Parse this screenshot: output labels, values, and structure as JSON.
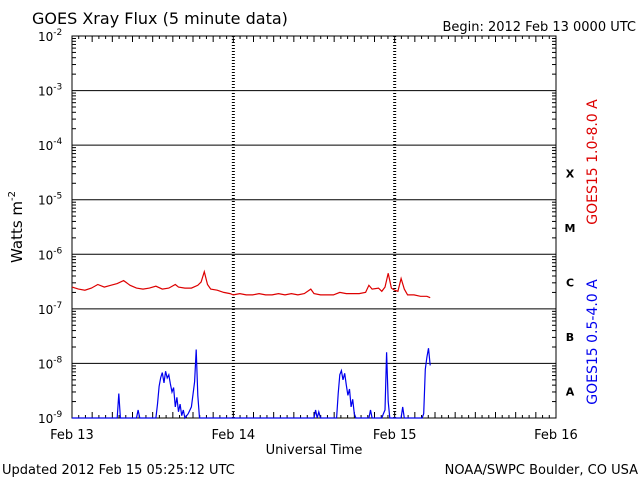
{
  "chart_data": {
    "type": "line",
    "title": "GOES Xray Flux (5 minute data)",
    "begin_label": "Begin:  2012 Feb 13 0000 UTC",
    "xlabel": "Universal Time",
    "ylabel_main": "Watts m",
    "ylabel_exp": "-2",
    "y_scale": "log",
    "ylim": [
      1e-09,
      0.01
    ],
    "x_domain_days": [
      0,
      3
    ],
    "x_ticks": [
      {
        "day": 0,
        "label": "Feb 13"
      },
      {
        "day": 1,
        "label": "Feb 14"
      },
      {
        "day": 2,
        "label": "Feb 15"
      },
      {
        "day": 3,
        "label": "Feb 16"
      }
    ],
    "y_ticks": [
      {
        "exp": -2,
        "label": "10"
      },
      {
        "exp": -3,
        "label": "10"
      },
      {
        "exp": -4,
        "label": "10"
      },
      {
        "exp": -5,
        "label": "10"
      },
      {
        "exp": -6,
        "label": "10"
      },
      {
        "exp": -7,
        "label": "10"
      },
      {
        "exp": -8,
        "label": "10"
      },
      {
        "exp": -9,
        "label": "10"
      }
    ],
    "flare_classes": [
      {
        "label": "X",
        "exp": -4
      },
      {
        "label": "M",
        "exp": -5
      },
      {
        "label": "C",
        "exp": -6
      },
      {
        "label": "B",
        "exp": -7
      },
      {
        "label": "A",
        "exp": -8
      }
    ],
    "grid": "horizontal lines at each decade; dashed vertical lines at day boundaries",
    "series": [
      {
        "name": "GOES15 1.0-8.0 A",
        "color": "#dd0000",
        "points": [
          [
            0.0,
            2.5e-07
          ],
          [
            0.04,
            2.3e-07
          ],
          [
            0.08,
            2.2e-07
          ],
          [
            0.12,
            2.4e-07
          ],
          [
            0.16,
            2.8e-07
          ],
          [
            0.2,
            2.5e-07
          ],
          [
            0.24,
            2.7e-07
          ],
          [
            0.28,
            2.9e-07
          ],
          [
            0.32,
            3.3e-07
          ],
          [
            0.36,
            2.7e-07
          ],
          [
            0.4,
            2.4e-07
          ],
          [
            0.44,
            2.3e-07
          ],
          [
            0.48,
            2.4e-07
          ],
          [
            0.52,
            2.6e-07
          ],
          [
            0.56,
            2.3e-07
          ],
          [
            0.6,
            2.4e-07
          ],
          [
            0.64,
            2.8e-07
          ],
          [
            0.66,
            2.5e-07
          ],
          [
            0.7,
            2.4e-07
          ],
          [
            0.74,
            2.4e-07
          ],
          [
            0.78,
            2.7e-07
          ],
          [
            0.8,
            3.1e-07
          ],
          [
            0.82,
            4.8e-07
          ],
          [
            0.84,
            2.8e-07
          ],
          [
            0.86,
            2.3e-07
          ],
          [
            0.9,
            2.2e-07
          ],
          [
            0.94,
            2e-07
          ],
          [
            0.98,
            1.9e-07
          ],
          [
            1.0,
            1.8e-07
          ],
          [
            1.04,
            1.9e-07
          ],
          [
            1.08,
            1.8e-07
          ],
          [
            1.12,
            1.8e-07
          ],
          [
            1.16,
            1.9e-07
          ],
          [
            1.2,
            1.8e-07
          ],
          [
            1.24,
            1.8e-07
          ],
          [
            1.28,
            1.9e-07
          ],
          [
            1.32,
            1.8e-07
          ],
          [
            1.36,
            1.9e-07
          ],
          [
            1.4,
            1.8e-07
          ],
          [
            1.44,
            1.9e-07
          ],
          [
            1.48,
            2.3e-07
          ],
          [
            1.5,
            1.9e-07
          ],
          [
            1.54,
            1.8e-07
          ],
          [
            1.58,
            1.8e-07
          ],
          [
            1.62,
            1.8e-07
          ],
          [
            1.66,
            2e-07
          ],
          [
            1.7,
            1.9e-07
          ],
          [
            1.74,
            1.9e-07
          ],
          [
            1.78,
            1.9e-07
          ],
          [
            1.82,
            2e-07
          ],
          [
            1.84,
            2.7e-07
          ],
          [
            1.86,
            2.3e-07
          ],
          [
            1.9,
            2.4e-07
          ],
          [
            1.92,
            2.1e-07
          ],
          [
            1.94,
            2.5e-07
          ],
          [
            1.96,
            4.5e-07
          ],
          [
            1.98,
            2.4e-07
          ],
          [
            2.0,
            2.2e-07
          ],
          [
            2.02,
            2.1e-07
          ],
          [
            2.04,
            3.6e-07
          ],
          [
            2.06,
            2.3e-07
          ],
          [
            2.08,
            1.8e-07
          ],
          [
            2.12,
            1.8e-07
          ],
          [
            2.16,
            1.7e-07
          ],
          [
            2.2,
            1.7e-07
          ],
          [
            2.22,
            1.6e-07
          ]
        ]
      },
      {
        "name": "GOES15 0.5-4.0 A",
        "color": "#0000ee",
        "points": [
          [
            0.0,
            1e-09
          ],
          [
            0.28,
            1e-09
          ],
          [
            0.29,
            2.8e-09
          ],
          [
            0.3,
            1e-09
          ],
          [
            0.4,
            1e-09
          ],
          [
            0.41,
            1.4e-09
          ],
          [
            0.42,
            1e-09
          ],
          [
            0.52,
            1e-09
          ],
          [
            0.53,
            1.8e-09
          ],
          [
            0.54,
            3.8e-09
          ],
          [
            0.55,
            5.5e-09
          ],
          [
            0.56,
            6.8e-09
          ],
          [
            0.57,
            4.4e-09
          ],
          [
            0.58,
            7.2e-09
          ],
          [
            0.59,
            5.4e-09
          ],
          [
            0.6,
            6.2e-09
          ],
          [
            0.61,
            4.2e-09
          ],
          [
            0.62,
            3e-09
          ],
          [
            0.63,
            3.6e-09
          ],
          [
            0.64,
            1.6e-09
          ],
          [
            0.65,
            2.4e-09
          ],
          [
            0.66,
            1.3e-09
          ],
          [
            0.67,
            1.8e-09
          ],
          [
            0.68,
            1.1e-09
          ],
          [
            0.69,
            1.4e-09
          ],
          [
            0.7,
            1e-09
          ],
          [
            0.72,
            1.2e-09
          ],
          [
            0.74,
            1.6e-09
          ],
          [
            0.76,
            4.6e-09
          ],
          [
            0.77,
            1.8e-08
          ],
          [
            0.78,
            2.6e-09
          ],
          [
            0.79,
            1e-09
          ],
          [
            1.5,
            1e-09
          ],
          [
            1.51,
            1.4e-09
          ],
          [
            1.52,
            1e-09
          ],
          [
            1.53,
            1.3e-09
          ],
          [
            1.54,
            1e-09
          ],
          [
            1.64,
            1e-09
          ],
          [
            1.65,
            2.8e-09
          ],
          [
            1.66,
            6.2e-09
          ],
          [
            1.67,
            7.4e-09
          ],
          [
            1.68,
            5e-09
          ],
          [
            1.69,
            6.6e-09
          ],
          [
            1.7,
            4e-09
          ],
          [
            1.71,
            2.6e-09
          ],
          [
            1.72,
            3.4e-09
          ],
          [
            1.73,
            1.6e-09
          ],
          [
            1.74,
            2.2e-09
          ],
          [
            1.75,
            1.2e-09
          ],
          [
            1.76,
            1e-09
          ],
          [
            1.84,
            1e-09
          ],
          [
            1.85,
            1.4e-09
          ],
          [
            1.86,
            1e-09
          ],
          [
            1.92,
            1e-09
          ],
          [
            1.93,
            1.2e-09
          ],
          [
            1.94,
            1.4e-09
          ],
          [
            1.95,
            1.6e-08
          ],
          [
            1.96,
            2e-09
          ],
          [
            1.97,
            1e-09
          ],
          [
            2.04,
            1e-09
          ],
          [
            2.05,
            1.6e-09
          ],
          [
            2.06,
            1e-09
          ],
          [
            2.17,
            1e-09
          ],
          [
            2.18,
            1.2e-09
          ],
          [
            2.19,
            7.8e-09
          ],
          [
            2.2,
            1.3e-08
          ],
          [
            2.21,
            1.9e-08
          ],
          [
            2.22,
            9.2e-09
          ]
        ]
      }
    ]
  },
  "footer": {
    "updated": "Updated 2012 Feb 15 05:25:12 UTC",
    "credit": "NOAA/SWPC Boulder, CO USA"
  },
  "colors": {
    "long_channel": "#dd0000",
    "short_channel": "#0000ee"
  }
}
